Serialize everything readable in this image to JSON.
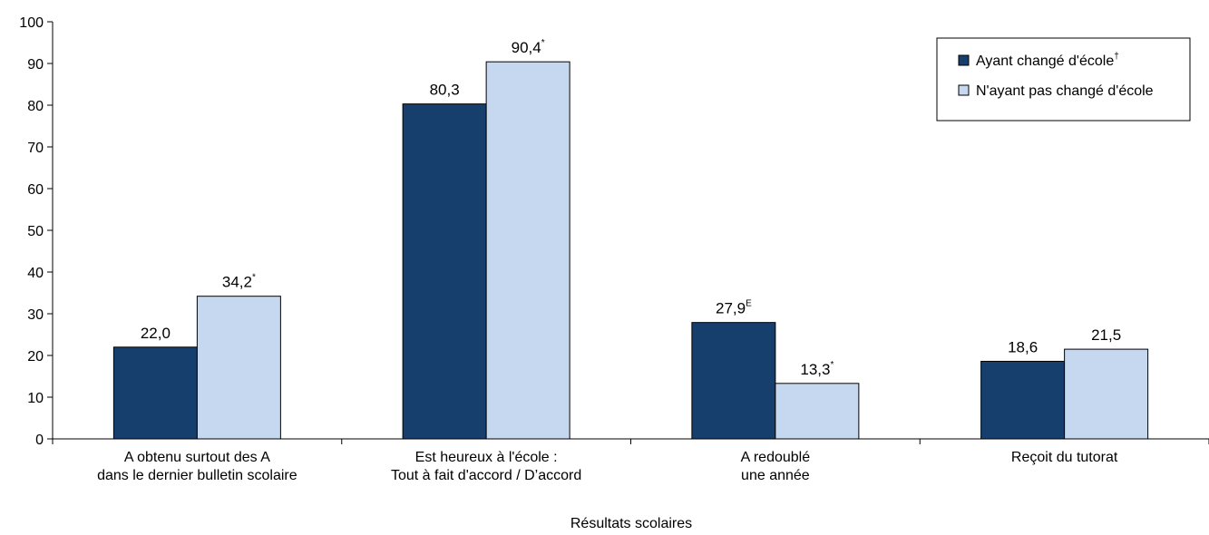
{
  "chart_data": {
    "type": "bar",
    "title": "",
    "xlabel": "Résultats scolaires",
    "ylabel": "",
    "ylim": [
      0,
      100
    ],
    "yticks": [
      0,
      10,
      20,
      30,
      40,
      50,
      60,
      70,
      80,
      90,
      100
    ],
    "grid": false,
    "legend_position": "top-right",
    "categories": [
      [
        "A obtenu surtout des A",
        "dans le dernier bulletin scolaire"
      ],
      [
        "Est heureux à l'école :",
        "Tout à fait d'accord / D’accord"
      ],
      [
        "A redoublé",
        "une année"
      ],
      [
        "Reçoit du tutorat"
      ]
    ],
    "series": [
      {
        "name": "Ayant changé d'école",
        "name_note": "†",
        "color": "#173f6e",
        "values": [
          22.0,
          80.3,
          27.9,
          18.6
        ],
        "value_labels": [
          "22,0",
          "80,3",
          "27,9",
          "18,6"
        ],
        "value_notes": [
          "",
          "",
          "E",
          ""
        ]
      },
      {
        "name": "N'ayant pas changé d'école",
        "name_note": "",
        "color": "#c5d8ef",
        "values": [
          34.2,
          90.4,
          13.3,
          21.5
        ],
        "value_labels": [
          "34,2",
          "90,4",
          "13,3",
          "21,5"
        ],
        "value_notes": [
          "*",
          "*",
          "*",
          ""
        ]
      }
    ]
  }
}
